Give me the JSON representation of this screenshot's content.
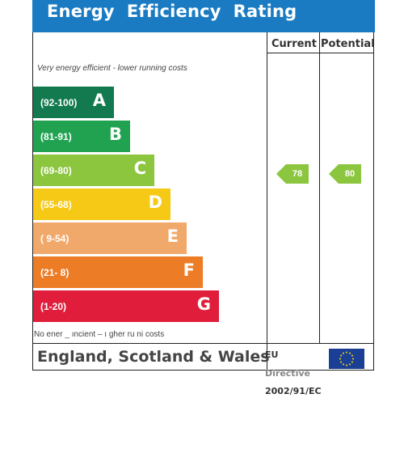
{
  "title": "Energy  Efficiency  Rating",
  "columns": {
    "current": "Current",
    "potential": "Potential"
  },
  "notes": {
    "top": "Very energy efficient - lower running costs",
    "bottom": "No  ener  _   ıncient – ı gher ru ni   costs"
  },
  "bands": [
    {
      "range": "(92-100)",
      "letter": "A",
      "color": "#127a4e"
    },
    {
      "range": "(81-91)",
      "letter": "B",
      "color": "#21a251"
    },
    {
      "range": "(69-80)",
      "letter": "C",
      "color": "#8cc63f"
    },
    {
      "range": "(55-68)",
      "letter": "D",
      "color": "#f5c916"
    },
    {
      "range": "( 9-54)",
      "letter": "E",
      "color": "#f1a96b"
    },
    {
      "range": "(21-  8)",
      "letter": "F",
      "color": "#ec7c26"
    },
    {
      "range": "(1-20)",
      "letter": "G",
      "color": "#e01e3c"
    }
  ],
  "current": {
    "value": "78",
    "color": "#8cc63f"
  },
  "potential": {
    "value": "80",
    "color": "#8cc63f"
  },
  "footer": {
    "region": "England, Scotland & Wales",
    "eu_line1": "EU",
    "eu_line2": "Directive",
    "eu_line3": "2002/91/EC"
  }
}
